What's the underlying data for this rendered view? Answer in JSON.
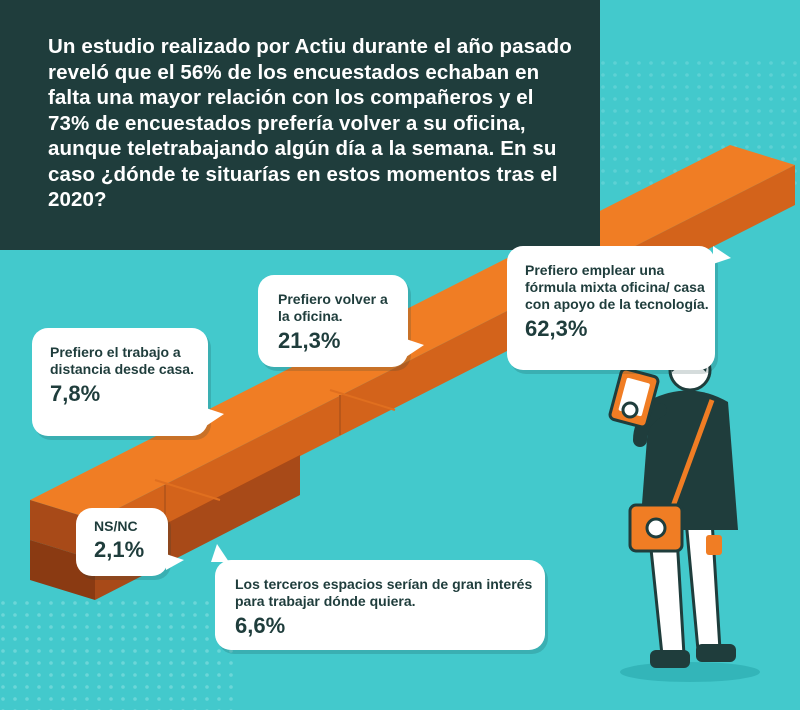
{
  "headline": "Un estudio realizado por Actiu durante el año pasado reveló que el 56% de los encuestados echaban en falta una mayor relación con los compañeros y el 73% de encuestados prefería volver a su oficina, aunque teletrabajando algún día a la semana. En su caso ¿dónde te situarías en estos momentos tras el 2020?",
  "colors": {
    "dark_panel": "#1f3d3c",
    "background": "#43c9cc",
    "orange": "#f07d24",
    "orange_dark": "#d3631b",
    "brown": "#a84a18",
    "text_dark": "#1f3d3c"
  },
  "answers": [
    {
      "label": "Prefiero el trabajo a distancia desde casa.",
      "value": "7,8%"
    },
    {
      "label": "Prefiero volver a la oficina.",
      "value": "21,3%"
    },
    {
      "label": "Prefiero emplear una fórmula mixta oficina/ casa con apoyo de la tecnología.",
      "value": "62,3%"
    },
    {
      "label": "NS/NC",
      "value": "2,1%"
    },
    {
      "label": "Los terceros espacios serían de gran interés para trabajar dónde quiera.",
      "value": "6,6%"
    }
  ],
  "illustration": {
    "figure": "person-with-tablet-illustration",
    "bar": "3d-stepped-bar-illustration"
  }
}
